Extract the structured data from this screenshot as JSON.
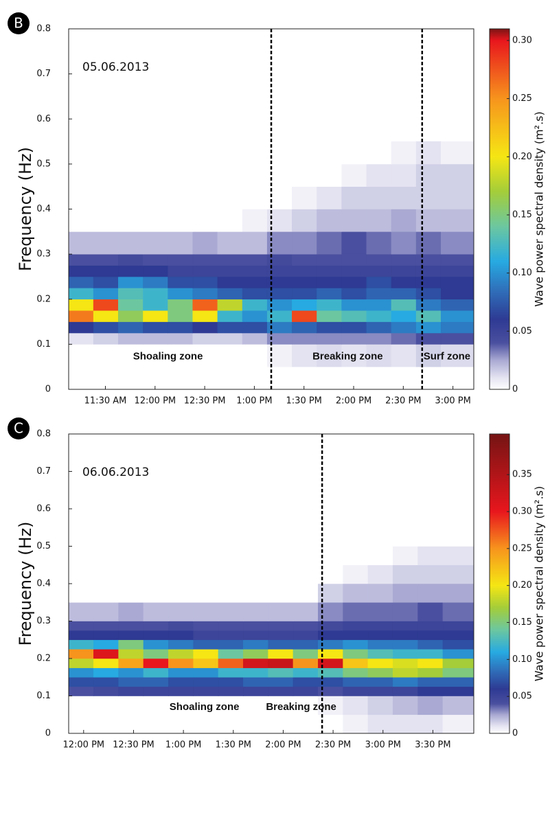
{
  "chart_data": [
    {
      "type": "heatmap",
      "panel_label": "B",
      "date_label": "05.06.2013",
      "ylabel": "Frequency (Hz)",
      "colorbar_label": "Wave power spectral density (m².s)",
      "xlim": [
        11.13,
        15.21
      ],
      "xticks": [
        {
          "value": 11.5,
          "label": "11:30 AM"
        },
        {
          "value": 12,
          "label": "12:00 PM"
        },
        {
          "value": 12.5,
          "label": "12:30 PM"
        },
        {
          "value": 13,
          "label": "1:00 PM"
        },
        {
          "value": 13.5,
          "label": "1:30 PM"
        },
        {
          "value": 14,
          "label": "2:00 PM"
        },
        {
          "value": 14.5,
          "label": "2:30 PM"
        },
        {
          "value": 15,
          "label": "3:00 PM"
        }
      ],
      "ylim": [
        0,
        0.8
      ],
      "yticks": [
        0,
        0.1,
        0.2,
        0.3,
        0.4,
        0.5,
        0.6,
        0.7,
        0.8
      ],
      "clim": [
        0,
        0.31
      ],
      "cticks": [
        0,
        0.05,
        {
          "value": 0.1,
          "label": "0.10"
        },
        0.15,
        {
          "value": 0.2,
          "label": "0.20"
        },
        0.25,
        {
          "value": 0.3,
          "label": "0.30"
        }
      ],
      "colormap": [
        {
          "value": 0,
          "color": "#ffffff"
        },
        {
          "value": 0.01,
          "color": "#e4e3f1"
        },
        {
          "value": 0.025,
          "color": "#a9a9d3"
        },
        {
          "value": 0.04,
          "color": "#4a4f9f"
        },
        {
          "value": 0.06,
          "color": "#2e3a93"
        },
        {
          "value": 0.085,
          "color": "#2f6fba"
        },
        {
          "value": 0.11,
          "color": "#27aae1"
        },
        {
          "value": 0.14,
          "color": "#6cc7a0"
        },
        {
          "value": 0.17,
          "color": "#a4cd39"
        },
        {
          "value": 0.2,
          "color": "#f5e614"
        },
        {
          "value": 0.25,
          "color": "#f7941d"
        },
        {
          "value": 0.3,
          "color": "#e8161d"
        },
        {
          "value": 0.4,
          "color": "#7a1414"
        }
      ],
      "x_edges": [
        11.13,
        11.38,
        11.63,
        11.88,
        12.13,
        12.38,
        12.63,
        12.88,
        13.13,
        13.38,
        13.63,
        13.88,
        14.13,
        14.38,
        14.63,
        14.88,
        15.21
      ],
      "y_edges": [
        0,
        0.05,
        0.1,
        0.125,
        0.15,
        0.175,
        0.2,
        0.225,
        0.25,
        0.275,
        0.3,
        0.35,
        0.4,
        0.45,
        0.5,
        0.55
      ],
      "z": [
        [
          0,
          0,
          0,
          0,
          0,
          0,
          0,
          0,
          0,
          0,
          0,
          0,
          0,
          0,
          0,
          0
        ],
        [
          0,
          0,
          0,
          0,
          0,
          0,
          0,
          0,
          0.005,
          0.01,
          0.012,
          0.01,
          0.012,
          0.01,
          0.015,
          0.012
        ],
        [
          0.01,
          0.015,
          0.02,
          0.02,
          0.02,
          0.015,
          0.015,
          0.02,
          0.03,
          0.03,
          0.03,
          0.03,
          0.03,
          0.035,
          0.04,
          0.04
        ],
        [
          0.06,
          0.07,
          0.08,
          0.07,
          0.07,
          0.06,
          0.07,
          0.07,
          0.09,
          0.08,
          0.07,
          0.07,
          0.08,
          0.09,
          0.1,
          0.09
        ],
        [
          0.26,
          0.2,
          0.16,
          0.2,
          0.15,
          0.2,
          0.12,
          0.1,
          0.12,
          0.28,
          0.14,
          0.13,
          0.12,
          0.11,
          0.13,
          0.1
        ],
        [
          0.2,
          0.28,
          0.14,
          0.12,
          0.15,
          0.27,
          0.18,
          0.12,
          0.1,
          0.11,
          0.12,
          0.1,
          0.1,
          0.13,
          0.09,
          0.08
        ],
        [
          0.12,
          0.1,
          0.13,
          0.12,
          0.1,
          0.09,
          0.08,
          0.07,
          0.07,
          0.07,
          0.08,
          0.07,
          0.08,
          0.08,
          0.07,
          0.06
        ],
        [
          0.08,
          0.07,
          0.1,
          0.09,
          0.07,
          0.07,
          0.06,
          0.06,
          0.06,
          0.06,
          0.06,
          0.06,
          0.07,
          0.06,
          0.06,
          0.06
        ],
        [
          0.06,
          0.06,
          0.06,
          0.06,
          0.05,
          0.05,
          0.05,
          0.05,
          0.05,
          0.05,
          0.05,
          0.05,
          0.05,
          0.05,
          0.05,
          0.05
        ],
        [
          0.04,
          0.04,
          0.045,
          0.04,
          0.04,
          0.04,
          0.04,
          0.04,
          0.045,
          0.04,
          0.04,
          0.04,
          0.04,
          0.04,
          0.04,
          0.04
        ],
        [
          0.02,
          0.02,
          0.02,
          0.02,
          0.02,
          0.025,
          0.02,
          0.02,
          0.03,
          0.03,
          0.035,
          0.04,
          0.035,
          0.03,
          0.035,
          0.03
        ],
        [
          0,
          0,
          0,
          0,
          0,
          0,
          0,
          0.005,
          0.01,
          0.015,
          0.02,
          0.02,
          0.02,
          0.025,
          0.02,
          0.02
        ],
        [
          0,
          0,
          0,
          0,
          0,
          0,
          0,
          0,
          0,
          0.005,
          0.01,
          0.015,
          0.015,
          0.015,
          0.015,
          0.015
        ],
        [
          0,
          0,
          0,
          0,
          0,
          0,
          0,
          0,
          0,
          0,
          0,
          0.005,
          0.01,
          0.01,
          0.015,
          0.015
        ],
        [
          0,
          0,
          0,
          0,
          0,
          0,
          0,
          0,
          0,
          0,
          0,
          0,
          0,
          0.005,
          0.01,
          0.005
        ]
      ],
      "vlines": [
        13.17,
        14.69
      ],
      "annotations": [
        {
          "text": "Shoaling zone",
          "x": 12.13,
          "y": 0.072
        },
        {
          "text": "Breaking zone",
          "x": 13.94,
          "y": 0.072
        },
        {
          "text": "Surf zone",
          "x": 14.94,
          "y": 0.072
        }
      ]
    },
    {
      "type": "heatmap",
      "panel_label": "C",
      "date_label": "06.06.2013",
      "ylabel": "Frequency (Hz)",
      "colorbar_label": "Wave power spectral density (m².s)",
      "xlim": [
        11.85,
        15.91
      ],
      "xticks": [
        {
          "value": 12,
          "label": "12:00 PM"
        },
        {
          "value": 12.5,
          "label": "12:30 PM"
        },
        {
          "value": 13,
          "label": "1:00 PM"
        },
        {
          "value": 13.5,
          "label": "1:30 PM"
        },
        {
          "value": 14,
          "label": "2:00 PM"
        },
        {
          "value": 14.5,
          "label": "2:30 PM"
        },
        {
          "value": 15,
          "label": "3:00 PM"
        },
        {
          "value": 15.5,
          "label": "3:30 PM"
        }
      ],
      "ylim": [
        0,
        0.8
      ],
      "yticks": [
        0,
        0.1,
        0.2,
        0.3,
        0.4,
        0.5,
        0.6,
        0.7,
        0.8
      ],
      "clim": [
        0,
        0.405
      ],
      "cticks": [
        0,
        0.05,
        {
          "value": 0.1,
          "label": "0.10"
        },
        0.15,
        {
          "value": 0.2,
          "label": "0.20"
        },
        0.25,
        {
          "value": 0.3,
          "label": "0.30"
        },
        0.35
      ],
      "colormap": [
        {
          "value": 0,
          "color": "#ffffff"
        },
        {
          "value": 0.01,
          "color": "#e4e3f1"
        },
        {
          "value": 0.025,
          "color": "#a9a9d3"
        },
        {
          "value": 0.04,
          "color": "#4a4f9f"
        },
        {
          "value": 0.06,
          "color": "#2e3a93"
        },
        {
          "value": 0.085,
          "color": "#2f6fba"
        },
        {
          "value": 0.11,
          "color": "#27aae1"
        },
        {
          "value": 0.14,
          "color": "#6cc7a0"
        },
        {
          "value": 0.17,
          "color": "#a4cd39"
        },
        {
          "value": 0.2,
          "color": "#f5e614"
        },
        {
          "value": 0.25,
          "color": "#f7941d"
        },
        {
          "value": 0.3,
          "color": "#e8161d"
        },
        {
          "value": 0.4,
          "color": "#7a1414"
        }
      ],
      "x_edges": [
        11.85,
        12.1,
        12.35,
        12.6,
        12.85,
        13.1,
        13.35,
        13.6,
        13.85,
        14.1,
        14.35,
        14.6,
        14.85,
        15.1,
        15.35,
        15.6,
        15.91
      ],
      "y_edges": [
        0,
        0.05,
        0.1,
        0.125,
        0.15,
        0.175,
        0.2,
        0.225,
        0.25,
        0.275,
        0.3,
        0.35,
        0.4,
        0.45,
        0.5,
        0.55
      ],
      "z": [
        [
          0,
          0,
          0,
          0,
          0,
          0,
          0,
          0,
          0,
          0,
          0,
          0.005,
          0.01,
          0.01,
          0.01,
          0.005
        ],
        [
          0,
          0,
          0,
          0,
          0,
          0,
          0,
          0,
          0,
          0,
          0.005,
          0.01,
          0.015,
          0.02,
          0.025,
          0.02
        ],
        [
          0.04,
          0.045,
          0.05,
          0.05,
          0.05,
          0.05,
          0.05,
          0.05,
          0.05,
          0.05,
          0.04,
          0.05,
          0.05,
          0.05,
          0.06,
          0.06
        ],
        [
          0.07,
          0.07,
          0.08,
          0.08,
          0.07,
          0.07,
          0.07,
          0.08,
          0.08,
          0.07,
          0.07,
          0.08,
          0.08,
          0.09,
          0.08,
          0.08
        ],
        [
          0.1,
          0.11,
          0.1,
          0.12,
          0.1,
          0.1,
          0.12,
          0.12,
          0.13,
          0.12,
          0.13,
          0.15,
          0.16,
          0.18,
          0.17,
          0.15
        ],
        [
          0.18,
          0.2,
          0.24,
          0.3,
          0.25,
          0.22,
          0.27,
          0.32,
          0.33,
          0.25,
          0.32,
          0.22,
          0.2,
          0.19,
          0.2,
          0.17
        ],
        [
          0.25,
          0.31,
          0.18,
          0.15,
          0.18,
          0.2,
          0.14,
          0.16,
          0.2,
          0.15,
          0.2,
          0.15,
          0.13,
          0.12,
          0.12,
          0.1
        ],
        [
          0.12,
          0.11,
          0.15,
          0.1,
          0.09,
          0.08,
          0.08,
          0.09,
          0.08,
          0.08,
          0.09,
          0.1,
          0.09,
          0.09,
          0.08,
          0.07
        ],
        [
          0.06,
          0.06,
          0.06,
          0.06,
          0.06,
          0.05,
          0.05,
          0.05,
          0.05,
          0.05,
          0.06,
          0.06,
          0.06,
          0.06,
          0.06,
          0.06
        ],
        [
          0.04,
          0.04,
          0.04,
          0.04,
          0.045,
          0.04,
          0.04,
          0.04,
          0.04,
          0.04,
          0.045,
          0.05,
          0.05,
          0.05,
          0.05,
          0.05
        ],
        [
          0.02,
          0.02,
          0.025,
          0.02,
          0.02,
          0.02,
          0.02,
          0.02,
          0.02,
          0.02,
          0.03,
          0.035,
          0.035,
          0.035,
          0.04,
          0.035
        ],
        [
          0,
          0,
          0,
          0,
          0,
          0,
          0,
          0,
          0,
          0,
          0.015,
          0.02,
          0.02,
          0.025,
          0.025,
          0.025
        ],
        [
          0,
          0,
          0,
          0,
          0,
          0,
          0,
          0,
          0,
          0,
          0,
          0.005,
          0.01,
          0.015,
          0.015,
          0.015
        ],
        [
          0,
          0,
          0,
          0,
          0,
          0,
          0,
          0,
          0,
          0,
          0,
          0,
          0,
          0.005,
          0.01,
          0.01
        ],
        [
          0,
          0,
          0,
          0,
          0,
          0,
          0,
          0,
          0,
          0,
          0,
          0,
          0,
          0,
          0,
          0
        ]
      ],
      "vlines": [
        14.39
      ],
      "annotations": [
        {
          "text": "Shoaling zone",
          "x": 13.21,
          "y": 0.07
        },
        {
          "text": "Breaking zone",
          "x": 14.18,
          "y": 0.07
        }
      ]
    }
  ]
}
